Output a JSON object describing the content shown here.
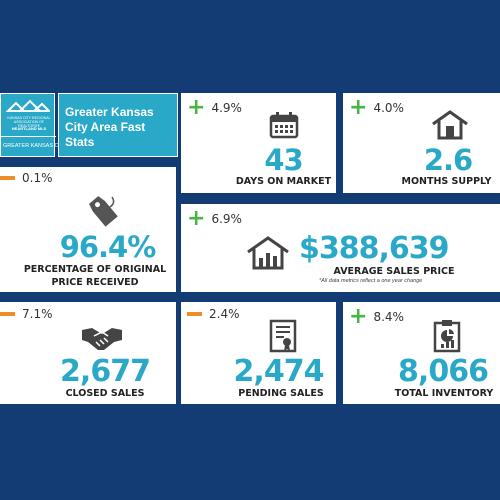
{
  "logo": {
    "line1": "KANSAS CITY REGIONAL",
    "line2": "ASSOCIATION OF REALTORS®",
    "line3": "HEARTLAND MLS",
    "region": "GREATER KANSAS CITY",
    "icon": "houses-logo-icon"
  },
  "title": "Greater Kansas City Area Fast Stats",
  "colors": {
    "background": "#123c73",
    "accent": "#2aa8c8",
    "up": "#4ab34a",
    "down": "#f08c28"
  },
  "stats": {
    "days_on_market": {
      "change": "4.9%",
      "direction": "up",
      "value": "43",
      "label": "DAYS ON MARKET",
      "icon": "calendar-icon"
    },
    "months_supply": {
      "change": "4.0%",
      "direction": "up",
      "value": "2.6",
      "label": "MONTHS SUPPLY",
      "icon": "house-outline-icon"
    },
    "pct_original_price": {
      "change": "0.1%",
      "direction": "down",
      "value": "96.4%",
      "label_line1": "PERCENTAGE OF ORIGINAL",
      "label_line2": "PRICE RECEIVED",
      "icon": "price-tag-icon"
    },
    "avg_sales_price": {
      "change": "6.9%",
      "direction": "up",
      "value": "$388,639",
      "label": "AVERAGE SALES PRICE",
      "note": "*All data metrics reflect a one year change",
      "icon": "house-chart-icon"
    },
    "closed_sales": {
      "change": "7.1%",
      "direction": "down",
      "value": "2,677",
      "label": "CLOSED SALES",
      "icon": "handshake-icon"
    },
    "pending_sales": {
      "change": "2.4%",
      "direction": "down",
      "value": "2,474",
      "label": "PENDING SALES",
      "icon": "certificate-icon"
    },
    "total_inventory": {
      "change": "8.4%",
      "direction": "up",
      "value": "8,066",
      "label": "TOTAL INVENTORY",
      "icon": "clipboard-chart-icon"
    }
  }
}
